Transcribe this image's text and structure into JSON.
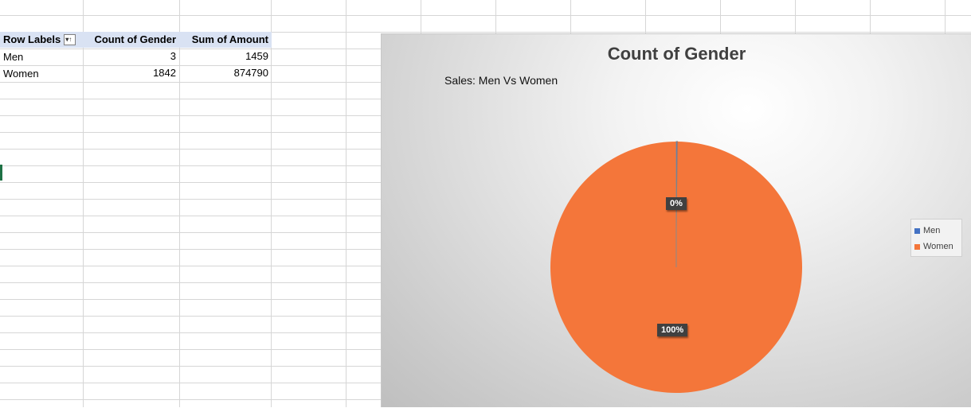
{
  "pivot": {
    "headers": [
      "Row Labels",
      "Count of Gender",
      "Sum of Amount"
    ],
    "rows": [
      {
        "label": "Men",
        "count": "3",
        "sum": "1459"
      },
      {
        "label": "Women",
        "count": "1842",
        "sum": "874790"
      }
    ]
  },
  "chart": {
    "title": "Count of Gender",
    "subtitle": "Sales: Men Vs Women"
  },
  "chart_data": {
    "type": "pie",
    "title": "Count of Gender",
    "subtitle": "Sales: Men Vs Women",
    "categories": [
      "Men",
      "Women"
    ],
    "values": [
      3,
      1842
    ],
    "data_labels": [
      "0%",
      "100%"
    ],
    "colors": [
      "#4472c4",
      "#f4763a"
    ],
    "legend": "right"
  }
}
